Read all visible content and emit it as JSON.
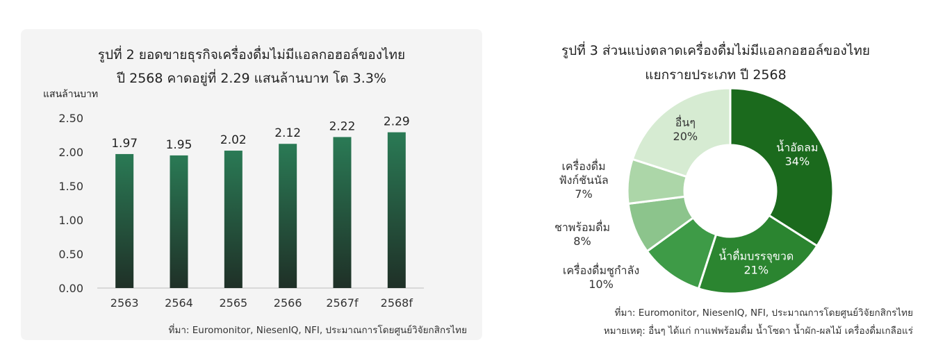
{
  "chart_data": [
    {
      "type": "bar",
      "title": "รูปที่ 2  ยอดขายธุรกิจเครื่องดื่มไม่มีแอลกอฮอล์ของไทย",
      "subtitle": "ปี 2568 คาดอยู่ที่ 2.29 แสนล้านบาท โต 3.3%",
      "ylabel": "แสนล้านบาท",
      "xlabel": "",
      "categories": [
        "2563",
        "2564",
        "2565",
        "2566",
        "2567f",
        "2568f"
      ],
      "values": [
        1.97,
        1.95,
        2.02,
        2.12,
        2.22,
        2.29
      ],
      "value_labels": [
        "1.97",
        "1.95",
        "2.02",
        "2.12",
        "2.22",
        "2.29"
      ],
      "yticks": [
        "0.00",
        "0.50",
        "1.00",
        "1.50",
        "2.00",
        "2.50"
      ],
      "ylim": [
        0,
        2.5
      ],
      "grid": false,
      "bar_color_top": "#2a7a55",
      "bar_color_bottom": "#1f3027",
      "source": "ที่มา: Euromonitor, NiesenIQ, NFI, ประมาณการโดยศูนย์วิจัยกสิกรไทย"
    },
    {
      "type": "pie",
      "donut": true,
      "title": "รูปที่ 3 ส่วนแบ่งตลาดเครื่องดื่มไม่มีแอลกอฮอล์ของไทย",
      "subtitle": "แยกรายประเภท ปี 2568",
      "slices": [
        {
          "label": "น้ำอัดลม",
          "value": 34,
          "pct": "34%",
          "color": "#1b6a1d",
          "label_inside": true
        },
        {
          "label": "น้ำดื่มบรรจุขวด",
          "value": 21,
          "pct": "21%",
          "color": "#2b8530",
          "label_inside": true
        },
        {
          "label": "เครื่องดื่มชูกำลัง",
          "value": 10,
          "pct": "10%",
          "color": "#3e9b47",
          "label_inside": false
        },
        {
          "label": "ชาพร้อมดื่ม",
          "value": 8,
          "pct": "8%",
          "color": "#8cc48c",
          "label_inside": false
        },
        {
          "label_lines": [
            "เครื่องดื่ม",
            "ฟังก์ชันนัล"
          ],
          "value": 7,
          "pct": "7%",
          "color": "#acd6a8",
          "label_inside": false
        },
        {
          "label": "อื่นๆ",
          "value": 20,
          "pct": "20%",
          "color": "#d6ebd2",
          "label_inside": true
        }
      ],
      "source": "ที่มา: Euromonitor, NiesenIQ, NFI, ประมาณการโดยศูนย์วิจัยกสิกรไทย",
      "note": "หมายเหตุ: อื่นๆ ได้แก่ กาแฟพร้อมดื่ม น้ำโซดา น้ำผัก-ผลไม้ เครื่องดื่มเกลือแร่"
    }
  ]
}
